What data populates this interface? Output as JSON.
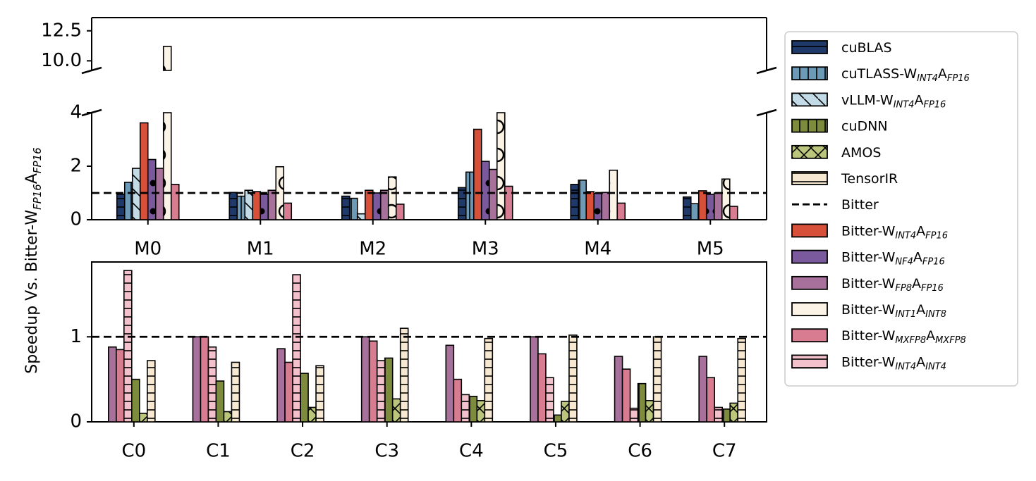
{
  "chart_data": {
    "type": "bar",
    "ylabel": {
      "prefix": "Speedup Vs. Bitter-W",
      "sub1": "FP16",
      "mid": "A",
      "sub2": "FP16"
    },
    "baseline": {
      "name": "Bitter",
      "value": 1
    },
    "series": [
      {
        "name": "cuBLAS",
        "sub": [],
        "color": "#1f3a68",
        "pattern": "hline"
      },
      {
        "name": "cuTLASS-W",
        "sub": [
          "INT4",
          "FP16"
        ],
        "color": "#6d9ab7",
        "pattern": "vline"
      },
      {
        "name": "vLLM-W",
        "sub": [
          "INT4",
          "FP16"
        ],
        "color": "#c2dbe6",
        "pattern": "diag"
      },
      {
        "name": "cuDNN",
        "sub": [],
        "color": "#7d8b3c",
        "pattern": "vline"
      },
      {
        "name": "AMOS",
        "sub": [],
        "color": "#bbc67c",
        "pattern": "cross"
      },
      {
        "name": "TensorIR",
        "sub": [],
        "color": "#f7e8d2",
        "pattern": "hline"
      },
      {
        "name": "Bitter",
        "sub": [],
        "color": "#000000",
        "pattern": "dashed-line"
      },
      {
        "name": "Bitter-W",
        "sub": [
          "INT4",
          "FP16"
        ],
        "color": "#d6503a",
        "pattern": "none"
      },
      {
        "name": "Bitter-W",
        "sub": [
          "NF4",
          "FP16"
        ],
        "color": "#7a5a9c",
        "pattern": "dot"
      },
      {
        "name": "Bitter-W",
        "sub": [
          "FP8",
          "FP16"
        ],
        "color": "#a8719b",
        "pattern": "none"
      },
      {
        "name": "Bitter-W",
        "sub": [
          "INT1",
          "INT8"
        ],
        "color": "#fbf3e6",
        "pattern": "circle"
      },
      {
        "name": "Bitter-W",
        "sub": [
          "MXFP8",
          "MXFP8"
        ],
        "color": "#d77c91",
        "pattern": "none"
      },
      {
        "name": "Bitter-W",
        "sub": [
          "INT4",
          "INT4"
        ],
        "color": "#f2c1cc",
        "pattern": "hline"
      }
    ],
    "top_panel": {
      "categories": [
        "M0",
        "M1",
        "M2",
        "M3",
        "M4",
        "M5"
      ],
      "yticks_lower": [
        "0",
        "2",
        "4"
      ],
      "yticks_upper": [
        "10.0",
        "12.5"
      ],
      "ylim_lower": [
        0,
        4
      ],
      "ylim_upper": [
        9.2,
        13.6
      ],
      "bars": [
        [
          {
            "series": 0,
            "value": 0.95
          },
          {
            "series": 1,
            "value": 1.4
          },
          {
            "series": 2,
            "value": 1.92
          },
          {
            "series": 7,
            "value": 3.62
          },
          {
            "series": 8,
            "value": 2.25
          },
          {
            "series": 9,
            "value": 1.92
          },
          {
            "series": 10,
            "value": 11.2
          },
          {
            "series": 11,
            "value": 1.32
          }
        ],
        [
          {
            "series": 0,
            "value": 1.02
          },
          {
            "series": 1,
            "value": 0.88
          },
          {
            "series": 2,
            "value": 1.1
          },
          {
            "series": 7,
            "value": 1.05
          },
          {
            "series": 8,
            "value": 0.95
          },
          {
            "series": 9,
            "value": 1.1
          },
          {
            "series": 10,
            "value": 1.98
          },
          {
            "series": 11,
            "value": 0.62
          }
        ],
        [
          {
            "series": 0,
            "value": 0.88
          },
          {
            "series": 1,
            "value": 0.8
          },
          {
            "series": 2,
            "value": 0.22
          },
          {
            "series": 7,
            "value": 1.1
          },
          {
            "series": 8,
            "value": 1.0
          },
          {
            "series": 9,
            "value": 1.1
          },
          {
            "series": 10,
            "value": 1.6
          },
          {
            "series": 11,
            "value": 0.58
          }
        ],
        [
          {
            "series": 0,
            "value": 1.2
          },
          {
            "series": 1,
            "value": 1.78
          },
          {
            "series": 7,
            "value": 3.38
          },
          {
            "series": 8,
            "value": 2.18
          },
          {
            "series": 9,
            "value": 1.88
          },
          {
            "series": 10,
            "value": 9.2
          },
          {
            "series": 11,
            "value": 1.25
          }
        ],
        [
          {
            "series": 0,
            "value": 1.32
          },
          {
            "series": 1,
            "value": 1.48
          },
          {
            "series": 7,
            "value": 1.05
          },
          {
            "series": 8,
            "value": 0.98
          },
          {
            "series": 9,
            "value": 1.02
          },
          {
            "series": 10,
            "value": 1.85
          },
          {
            "series": 11,
            "value": 0.62
          }
        ],
        [
          {
            "series": 0,
            "value": 0.85
          },
          {
            "series": 1,
            "value": 0.6
          },
          {
            "series": 7,
            "value": 1.08
          },
          {
            "series": 8,
            "value": 0.95
          },
          {
            "series": 9,
            "value": 1.0
          },
          {
            "series": 10,
            "value": 1.52
          },
          {
            "series": 11,
            "value": 0.5
          }
        ]
      ]
    },
    "bottom_panel": {
      "categories": [
        "C0",
        "C1",
        "C2",
        "C3",
        "C4",
        "C5",
        "C6",
        "C7"
      ],
      "yticks": [
        "0",
        "1"
      ],
      "ylim": [
        0,
        1.88
      ],
      "bars": [
        [
          {
            "series": 9,
            "value": 0.88
          },
          {
            "series": 11,
            "value": 0.85
          },
          {
            "series": 12,
            "value": 1.78
          },
          {
            "series": 3,
            "value": 0.5
          },
          {
            "series": 4,
            "value": 0.1
          },
          {
            "series": 5,
            "value": 0.72
          }
        ],
        [
          {
            "series": 9,
            "value": 1.0
          },
          {
            "series": 11,
            "value": 1.0
          },
          {
            "series": 12,
            "value": 0.88
          },
          {
            "series": 3,
            "value": 0.48
          },
          {
            "series": 4,
            "value": 0.12
          },
          {
            "series": 5,
            "value": 0.7
          }
        ],
        [
          {
            "series": 9,
            "value": 0.86
          },
          {
            "series": 11,
            "value": 0.7
          },
          {
            "series": 12,
            "value": 1.73
          },
          {
            "series": 3,
            "value": 0.57
          },
          {
            "series": 4,
            "value": 0.17
          },
          {
            "series": 5,
            "value": 0.66
          }
        ],
        [
          {
            "series": 9,
            "value": 1.0
          },
          {
            "series": 11,
            "value": 0.95
          },
          {
            "series": 12,
            "value": 0.72
          },
          {
            "series": 3,
            "value": 0.75
          },
          {
            "series": 4,
            "value": 0.27
          },
          {
            "series": 5,
            "value": 1.1
          }
        ],
        [
          {
            "series": 9,
            "value": 0.9
          },
          {
            "series": 11,
            "value": 0.5
          },
          {
            "series": 12,
            "value": 0.32
          },
          {
            "series": 3,
            "value": 0.3
          },
          {
            "series": 4,
            "value": 0.25
          },
          {
            "series": 5,
            "value": 0.98
          }
        ],
        [
          {
            "series": 9,
            "value": 1.0
          },
          {
            "series": 11,
            "value": 0.8
          },
          {
            "series": 12,
            "value": 0.52
          },
          {
            "series": 3,
            "value": 0.08
          },
          {
            "series": 4,
            "value": 0.24
          },
          {
            "series": 5,
            "value": 1.02
          }
        ],
        [
          {
            "series": 9,
            "value": 0.77
          },
          {
            "series": 11,
            "value": 0.62
          },
          {
            "series": 12,
            "value": 0.16
          },
          {
            "series": 3,
            "value": 0.45
          },
          {
            "series": 4,
            "value": 0.25
          },
          {
            "series": 5,
            "value": 1.0
          }
        ],
        [
          {
            "series": 9,
            "value": 0.77
          },
          {
            "series": 11,
            "value": 0.52
          },
          {
            "series": 12,
            "value": 0.17
          },
          {
            "series": 3,
            "value": 0.15
          },
          {
            "series": 4,
            "value": 0.22
          },
          {
            "series": 5,
            "value": 0.98
          }
        ]
      ]
    }
  }
}
